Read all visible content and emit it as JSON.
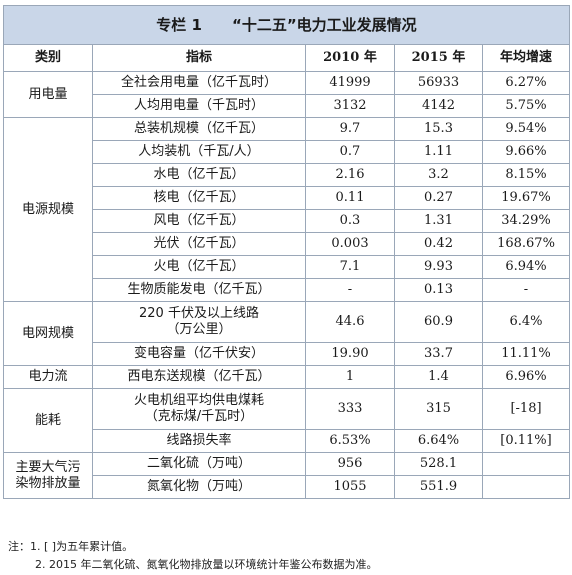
{
  "title": "专栏 1　　“十二五”电力工业发展情况",
  "headers": [
    "类别",
    "指标",
    "2010 年",
    "2015 年",
    "年均增速"
  ],
  "categories": [
    {
      "name": "用电量",
      "rows": [
        {
          "indicator": "全社会用电量（亿千瓦时）",
          "y2010": "41999",
          "y2015": "56933",
          "growth": "6.27%"
        },
        {
          "indicator": "人均用电量（千瓦时）",
          "y2010": "3132",
          "y2015": "4142",
          "growth": "5.75%"
        }
      ]
    },
    {
      "name": "电源规模",
      "rows": [
        {
          "indicator": "总装机规模（亿千瓦）",
          "y2010": "9.7",
          "y2015": "15.3",
          "growth": "9.54%"
        },
        {
          "indicator": "人均装机（千瓦/人）",
          "y2010": "0.7",
          "y2015": "1.11",
          "growth": "9.66%"
        },
        {
          "indicator": "水电（亿千瓦）",
          "y2010": "2.16",
          "y2015": "3.2",
          "growth": "8.15%"
        },
        {
          "indicator": "核电（亿千瓦）",
          "y2010": "0.11",
          "y2015": "0.27",
          "growth": "19.67%"
        },
        {
          "indicator": "风电（亿千瓦）",
          "y2010": "0.3",
          "y2015": "1.31",
          "growth": "34.29%"
        },
        {
          "indicator": "光伏（亿千瓦）",
          "y2010": "0.003",
          "y2015": "0.42",
          "growth": "168.67%"
        },
        {
          "indicator": "火电（亿千瓦）",
          "y2010": "7.1",
          "y2015": "9.93",
          "growth": "6.94%"
        },
        {
          "indicator": "生物质能发电（亿千瓦）",
          "y2010": "-",
          "y2015": "0.13",
          "growth": "-"
        }
      ]
    },
    {
      "name": "电网规模",
      "rows": [
        {
          "indicator": "220 千伏及以上线路\n（万公里）",
          "y2010": "44.6",
          "y2015": "60.9",
          "growth": "6.4%"
        },
        {
          "indicator": "变电容量（亿千伏安）",
          "y2010": "19.90",
          "y2015": "33.7",
          "growth": "11.11%"
        }
      ]
    },
    {
      "name": "电力流",
      "rows": [
        {
          "indicator": "西电东送规模（亿千瓦）",
          "y2010": "1",
          "y2015": "1.4",
          "growth": "6.96%"
        }
      ]
    },
    {
      "name": "能耗",
      "rows": [
        {
          "indicator": "火电机组平均供电煤耗\n（克标煤/千瓦时）",
          "y2010": "333",
          "y2015": "315",
          "growth": "[-18]"
        },
        {
          "indicator": "线路损失率",
          "y2010": "6.53%",
          "y2015": "6.64%",
          "growth": "[0.11%]"
        }
      ]
    },
    {
      "name": "主要大气污\n染物排放量",
      "rows": [
        {
          "indicator": "二氧化硫（万吨）",
          "y2010": "956",
          "y2015": "528.1",
          "growth": ""
        },
        {
          "indicator": "氮氧化物（万吨）",
          "y2010": "1055",
          "y2015": "551.9",
          "growth": ""
        }
      ]
    }
  ],
  "notes": [
    "注：1. [ ]为五年累计值。",
    "2. 2015 年二氧化硫、氮氧化物排放量以环境统计年鉴公布数据为准。"
  ]
}
